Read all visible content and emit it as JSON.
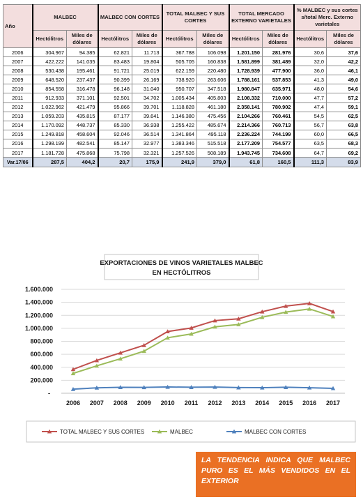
{
  "table": {
    "year_header": "Año",
    "groups": [
      {
        "label": "MALBEC"
      },
      {
        "label": "MALBEC CON CORTES"
      },
      {
        "label": "TOTAL MALBEC Y SUS CORTES"
      },
      {
        "label": "TOTAL MERCADO EXTERNO VARIETALES"
      },
      {
        "label": "% MALBEC y sus cortes s/total Merc. Externo varietales"
      }
    ],
    "sub_headers": [
      "Hectólitros",
      "Miles de dólares",
      "Hectólitros",
      "Miles de dólares",
      "Hectólitros",
      "Miles de dólares",
      "Hectólitros",
      "Miles de dólares",
      "Hectólitros",
      "Miles de dólares"
    ],
    "rows": [
      [
        "2006",
        "304.967",
        "94.385",
        "62.821",
        "11.713",
        "367.788",
        "106.098",
        "1.201.150",
        "281.976",
        "30,6",
        "37,6"
      ],
      [
        "2007",
        "422.222",
        "141.035",
        "83.483",
        "19.804",
        "505.705",
        "160.838",
        "1.581.899",
        "381.489",
        "32,0",
        "42,2"
      ],
      [
        "2008",
        "530.438",
        "195.461",
        "91.721",
        "25.019",
        "622.159",
        "220.480",
        "1.728.939",
        "477.900",
        "36,0",
        "46,1"
      ],
      [
        "2009",
        "648.520",
        "237.437",
        "90.399",
        "26.169",
        "738.920",
        "263.606",
        "1.788.161",
        "537.853",
        "41,3",
        "49,0"
      ],
      [
        "2010",
        "854.558",
        "316.478",
        "96.148",
        "31.040",
        "950.707",
        "347.518",
        "1.980.847",
        "635.971",
        "48,0",
        "54,6"
      ],
      [
        "2011",
        "912.933",
        "371.101",
        "92.501",
        "34.702",
        "1.005.434",
        "405.803",
        "2.108.332",
        "710.000",
        "47,7",
        "57,2"
      ],
      [
        "2012",
        "1.022.962",
        "421.479",
        "95.866",
        "39.701",
        "1.118.828",
        "461.180",
        "2.358.141",
        "780.902",
        "47,4",
        "59,1"
      ],
      [
        "2013",
        "1.059.203",
        "435.815",
        "87.177",
        "39.641",
        "1.146.380",
        "475.456",
        "2.104.266",
        "760.461",
        "54,5",
        "62,5"
      ],
      [
        "2014",
        "1.170.092",
        "448.737",
        "85.330",
        "36.938",
        "1.255.422",
        "485.674",
        "2.214.366",
        "760.713",
        "56,7",
        "63,8"
      ],
      [
        "2015",
        "1.249.818",
        "458.604",
        "92.046",
        "36.514",
        "1.341.864",
        "495.118",
        "2.236.224",
        "744.199",
        "60,0",
        "66,5"
      ],
      [
        "2016",
        "1.298.199",
        "482.541",
        "85.147",
        "32.977",
        "1.383.346",
        "515.518",
        "2.177.209",
        "754.577",
        "63,5",
        "68,3"
      ],
      [
        "2017",
        "1.181.728",
        "475.868",
        "75.798",
        "32.321",
        "1.257.526",
        "508.189",
        "1.943.745",
        "734.608",
        "64,7",
        "69,2"
      ]
    ],
    "footer": [
      "Var.17/06",
      "287,5",
      "404,2",
      "20,7",
      "175,9",
      "241,9",
      "379,0",
      "61,8",
      "160,5",
      "111,3",
      "83,9"
    ]
  },
  "chart_data": {
    "type": "line",
    "title_line1": "EXPORTACIONES DE VINOS VARIETALES MALBEC",
    "title_line2": "EN HECTÓLITROS",
    "categories": [
      "2006",
      "2007",
      "2008",
      "2009",
      "2010",
      "2011",
      "2012",
      "2013",
      "2014",
      "2015",
      "2016",
      "2017"
    ],
    "y_ticks": [
      "-",
      "200.000",
      "400.000",
      "600.000",
      "800.000",
      "1.000.000",
      "1.200.000",
      "1.400.000",
      "1.600.000"
    ],
    "ylim": [
      0,
      1600000
    ],
    "legend_position": "bottom",
    "series": [
      {
        "name": "TOTAL MALBEC Y SUS CORTES",
        "color": "#c0504d",
        "marker": "triangle",
        "values": [
          367788,
          505705,
          622159,
          738920,
          950707,
          1005434,
          1118828,
          1146380,
          1255422,
          1341864,
          1383346,
          1257526
        ]
      },
      {
        "name": "MALBEC",
        "color": "#9bbb59",
        "marker": "triangle",
        "values": [
          304967,
          422222,
          530438,
          648520,
          854558,
          912933,
          1022962,
          1059203,
          1170092,
          1249818,
          1298199,
          1181728
        ]
      },
      {
        "name": "MALBEC CON CORTES",
        "color": "#4f81bd",
        "marker": "triangle",
        "values": [
          62821,
          83483,
          91721,
          90399,
          96148,
          92501,
          95866,
          87177,
          85330,
          92046,
          85147,
          75798
        ]
      }
    ]
  },
  "callout": {
    "text": "LA TENDENCIA INDICA QUE MALBEC PURO ES EL MÁS VENDIDOS EN EL EXTERIOR",
    "bg_color": "#ea7024"
  }
}
